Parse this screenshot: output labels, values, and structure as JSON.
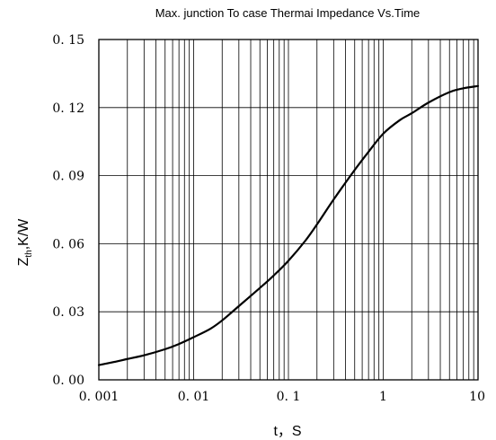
{
  "chart_data": {
    "type": "line",
    "title": "Max. junction To case Thermai Impedance Vs.Time",
    "xlabel": "t，S",
    "ylabel": {
      "main": "Z",
      "sub": "th",
      "rest": ",K/W"
    },
    "xscale": "log",
    "xlim": [
      0.001,
      10
    ],
    "ylim": [
      0,
      0.15
    ],
    "xticks": [
      {
        "value": 0.001,
        "label": "0. 001"
      },
      {
        "value": 0.01,
        "label": "0. 01"
      },
      {
        "value": 0.1,
        "label": "0. 1"
      },
      {
        "value": 1,
        "label": "1"
      },
      {
        "value": 10,
        "label": "10"
      }
    ],
    "yticks": [
      {
        "value": 0,
        "label": "0. 00"
      },
      {
        "value": 0.03,
        "label": "0. 03"
      },
      {
        "value": 0.06,
        "label": "0. 06"
      },
      {
        "value": 0.09,
        "label": "0. 09"
      },
      {
        "value": 0.12,
        "label": "0. 12"
      },
      {
        "value": 0.15,
        "label": "0. 15"
      }
    ],
    "grid": true,
    "series": [
      {
        "x": [
          0.001,
          0.0015,
          0.002,
          0.003,
          0.005,
          0.007,
          0.01,
          0.015,
          0.02,
          0.03,
          0.05,
          0.07,
          0.1,
          0.15,
          0.2,
          0.3,
          0.5,
          0.7,
          1,
          1.5,
          2,
          3,
          5,
          7,
          10
        ],
        "y": [
          0.0065,
          0.008,
          0.0092,
          0.0108,
          0.0135,
          0.0158,
          0.0188,
          0.0225,
          0.0262,
          0.0325,
          0.0405,
          0.046,
          0.0525,
          0.0612,
          0.0685,
          0.0795,
          0.0925,
          0.1005,
          0.1085,
          0.1145,
          0.1175,
          0.1222,
          0.1268,
          0.1285,
          0.1295
        ]
      }
    ]
  }
}
